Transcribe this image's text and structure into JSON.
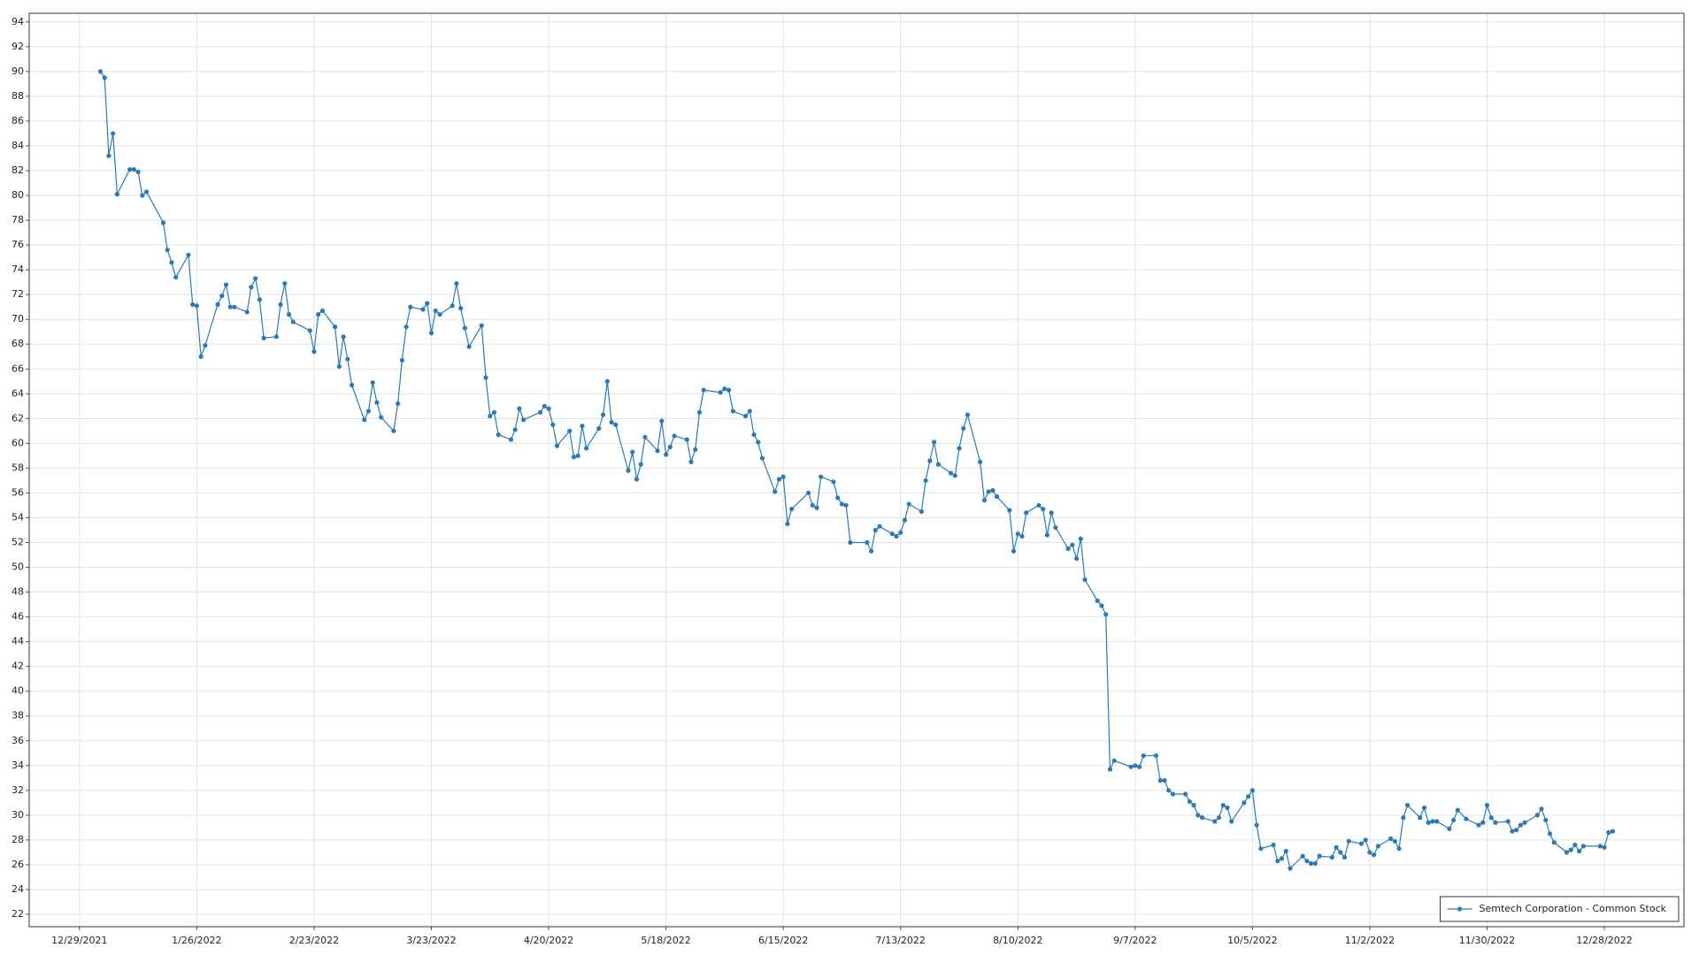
{
  "chart_data": {
    "type": "line",
    "x": [
      "1/3/2022",
      "1/4/2022",
      "1/5/2022",
      "1/6/2022",
      "1/7/2022",
      "1/10/2022",
      "1/11/2022",
      "1/12/2022",
      "1/13/2022",
      "1/14/2022",
      "1/18/2022",
      "1/19/2022",
      "1/20/2022",
      "1/21/2022",
      "1/24/2022",
      "1/25/2022",
      "1/26/2022",
      "1/27/2022",
      "1/28/2022",
      "1/31/2022",
      "2/1/2022",
      "2/2/2022",
      "2/3/2022",
      "2/4/2022",
      "2/7/2022",
      "2/8/2022",
      "2/9/2022",
      "2/10/2022",
      "2/11/2022",
      "2/14/2022",
      "2/15/2022",
      "2/16/2022",
      "2/17/2022",
      "2/18/2022",
      "2/22/2022",
      "2/23/2022",
      "2/24/2022",
      "2/25/2022",
      "2/28/2022",
      "3/1/2022",
      "3/2/2022",
      "3/3/2022",
      "3/4/2022",
      "3/7/2022",
      "3/8/2022",
      "3/9/2022",
      "3/10/2022",
      "3/11/2022",
      "3/14/2022",
      "3/15/2022",
      "3/16/2022",
      "3/17/2022",
      "3/18/2022",
      "3/21/2022",
      "3/22/2022",
      "3/23/2022",
      "3/24/2022",
      "3/25/2022",
      "3/28/2022",
      "3/29/2022",
      "3/30/2022",
      "3/31/2022",
      "4/1/2022",
      "4/4/2022",
      "4/5/2022",
      "4/6/2022",
      "4/7/2022",
      "4/8/2022",
      "4/11/2022",
      "4/12/2022",
      "4/13/2022",
      "4/14/2022",
      "4/18/2022",
      "4/19/2022",
      "4/20/2022",
      "4/21/2022",
      "4/22/2022",
      "4/25/2022",
      "4/26/2022",
      "4/27/2022",
      "4/28/2022",
      "4/29/2022",
      "5/2/2022",
      "5/3/2022",
      "5/4/2022",
      "5/5/2022",
      "5/6/2022",
      "5/9/2022",
      "5/10/2022",
      "5/11/2022",
      "5/12/2022",
      "5/13/2022",
      "5/16/2022",
      "5/17/2022",
      "5/18/2022",
      "5/19/2022",
      "5/20/2022",
      "5/23/2022",
      "5/24/2022",
      "5/25/2022",
      "5/26/2022",
      "5/27/2022",
      "5/31/2022",
      "6/1/2022",
      "6/2/2022",
      "6/3/2022",
      "6/6/2022",
      "6/7/2022",
      "6/8/2022",
      "6/9/2022",
      "6/10/2022",
      "6/13/2022",
      "6/14/2022",
      "6/15/2022",
      "6/16/2022",
      "6/17/2022",
      "6/21/2022",
      "6/22/2022",
      "6/23/2022",
      "6/24/2022",
      "6/27/2022",
      "6/28/2022",
      "6/29/2022",
      "6/30/2022",
      "7/1/2022",
      "7/5/2022",
      "7/6/2022",
      "7/7/2022",
      "7/8/2022",
      "7/11/2022",
      "7/12/2022",
      "7/13/2022",
      "7/14/2022",
      "7/15/2022",
      "7/18/2022",
      "7/19/2022",
      "7/20/2022",
      "7/21/2022",
      "7/22/2022",
      "7/25/2022",
      "7/26/2022",
      "7/27/2022",
      "7/28/2022",
      "7/29/2022",
      "8/1/2022",
      "8/2/2022",
      "8/3/2022",
      "8/4/2022",
      "8/5/2022",
      "8/8/2022",
      "8/9/2022",
      "8/10/2022",
      "8/11/2022",
      "8/12/2022",
      "8/15/2022",
      "8/16/2022",
      "8/17/2022",
      "8/18/2022",
      "8/19/2022",
      "8/22/2022",
      "8/23/2022",
      "8/24/2022",
      "8/25/2022",
      "8/26/2022",
      "8/29/2022",
      "8/30/2022",
      "8/31/2022",
      "9/1/2022",
      "9/2/2022",
      "9/6/2022",
      "9/7/2022",
      "9/8/2022",
      "9/9/2022",
      "9/12/2022",
      "9/13/2022",
      "9/14/2022",
      "9/15/2022",
      "9/16/2022",
      "9/19/2022",
      "9/20/2022",
      "9/21/2022",
      "9/22/2022",
      "9/23/2022",
      "9/26/2022",
      "9/27/2022",
      "9/28/2022",
      "9/29/2022",
      "9/30/2022",
      "10/3/2022",
      "10/4/2022",
      "10/5/2022",
      "10/6/2022",
      "10/7/2022",
      "10/10/2022",
      "10/11/2022",
      "10/12/2022",
      "10/13/2022",
      "10/14/2022",
      "10/17/2022",
      "10/18/2022",
      "10/19/2022",
      "10/20/2022",
      "10/21/2022",
      "10/24/2022",
      "10/25/2022",
      "10/26/2022",
      "10/27/2022",
      "10/28/2022",
      "10/31/2022",
      "11/1/2022",
      "11/2/2022",
      "11/3/2022",
      "11/4/2022",
      "11/7/2022",
      "11/8/2022",
      "11/9/2022",
      "11/10/2022",
      "11/11/2022",
      "11/14/2022",
      "11/15/2022",
      "11/16/2022",
      "11/17/2022",
      "11/18/2022",
      "11/21/2022",
      "11/22/2022",
      "11/23/2022",
      "11/25/2022",
      "11/28/2022",
      "11/29/2022",
      "11/30/2022",
      "12/1/2022",
      "12/2/2022",
      "12/5/2022",
      "12/6/2022",
      "12/7/2022",
      "12/8/2022",
      "12/9/2022",
      "12/12/2022",
      "12/13/2022",
      "12/14/2022",
      "12/15/2022",
      "12/16/2022",
      "12/19/2022",
      "12/20/2022",
      "12/21/2022",
      "12/22/2022",
      "12/23/2022",
      "12/27/2022",
      "12/28/2022",
      "12/29/2022",
      "12/30/2022"
    ],
    "series": [
      {
        "name": "Semtech Corporation - Common Stock",
        "color": "#2a7ab8",
        "values": [
          90.0,
          89.5,
          83.2,
          85.0,
          80.1,
          82.1,
          82.1,
          81.9,
          80.0,
          80.3,
          77.8,
          75.6,
          74.6,
          73.4,
          75.2,
          71.2,
          71.1,
          67.0,
          67.9,
          71.2,
          71.9,
          72.8,
          71.0,
          71.0,
          70.6,
          72.6,
          73.3,
          71.6,
          68.5,
          68.6,
          71.2,
          72.9,
          70.4,
          69.8,
          69.1,
          67.4,
          70.4,
          70.7,
          69.4,
          66.2,
          68.6,
          66.8,
          64.7,
          61.9,
          62.6,
          64.9,
          63.3,
          62.1,
          61.0,
          63.2,
          66.7,
          69.4,
          71.0,
          70.8,
          71.3,
          68.9,
          70.7,
          70.4,
          71.1,
          72.9,
          70.9,
          69.3,
          67.8,
          69.5,
          65.3,
          62.2,
          62.5,
          60.7,
          60.3,
          61.1,
          62.8,
          61.9,
          62.5,
          63.0,
          62.8,
          61.5,
          59.8,
          61.0,
          58.9,
          59.0,
          61.4,
          59.6,
          61.2,
          62.3,
          65.0,
          61.7,
          61.5,
          57.8,
          59.3,
          57.1,
          58.3,
          60.5,
          59.4,
          61.8,
          59.1,
          59.7,
          60.6,
          60.3,
          58.5,
          59.5,
          62.5,
          64.3,
          64.1,
          64.4,
          64.3,
          62.6,
          62.2,
          62.6,
          60.7,
          60.1,
          58.8,
          56.1,
          57.1,
          57.3,
          53.5,
          54.7,
          56.0,
          55.0,
          54.8,
          57.3,
          56.9,
          55.6,
          55.1,
          55.0,
          52.0,
          52.0,
          51.3,
          53.0,
          53.3,
          52.7,
          52.5,
          52.8,
          53.8,
          55.1,
          54.5,
          57.0,
          58.6,
          60.1,
          58.3,
          57.6,
          57.4,
          59.6,
          61.2,
          62.3,
          58.5,
          55.4,
          56.1,
          56.2,
          55.7,
          54.6,
          51.3,
          52.7,
          52.5,
          54.4,
          55.0,
          54.7,
          52.6,
          54.4,
          53.2,
          51.5,
          51.8,
          50.7,
          52.3,
          49.0,
          47.3,
          46.9,
          46.2,
          33.7,
          34.4,
          33.9,
          34.0,
          33.9,
          34.8,
          34.8,
          32.8,
          32.8,
          32.0,
          31.7,
          31.7,
          31.1,
          30.8,
          30.0,
          29.8,
          29.5,
          29.8,
          30.8,
          30.6,
          29.5,
          31.0,
          31.5,
          32.0,
          29.2,
          27.3,
          27.6,
          26.3,
          26.5,
          27.1,
          25.7,
          26.7,
          26.3,
          26.1,
          26.1,
          26.7,
          26.6,
          27.4,
          27.0,
          26.6,
          27.9,
          27.7,
          28.0,
          27.0,
          26.8,
          27.5,
          28.1,
          27.9,
          27.3,
          29.8,
          30.8,
          29.8,
          30.6,
          29.4,
          29.5,
          29.5,
          28.9,
          29.6,
          30.4,
          29.7,
          29.2,
          29.4,
          30.8,
          29.8,
          29.4,
          29.5,
          28.7,
          28.8,
          29.2,
          29.4,
          30.0,
          30.5,
          29.6,
          28.5,
          27.8,
          27.0,
          27.2,
          27.6,
          27.1,
          27.5,
          27.5,
          27.4,
          28.6,
          28.7
        ]
      }
    ],
    "xlim": [
      "12/17/2021",
      "1/16/2023"
    ],
    "xticks": [
      "12/29/2021",
      "1/26/2022",
      "2/23/2022",
      "3/23/2022",
      "4/20/2022",
      "5/18/2022",
      "6/15/2022",
      "7/13/2022",
      "8/10/2022",
      "9/7/2022",
      "10/5/2022",
      "11/2/2022",
      "11/30/2022",
      "12/28/2022"
    ],
    "ylim": [
      21,
      94.7
    ],
    "yticks": [
      22,
      24,
      26,
      28,
      30,
      32,
      34,
      36,
      38,
      40,
      42,
      44,
      46,
      48,
      50,
      52,
      54,
      56,
      58,
      60,
      62,
      64,
      66,
      68,
      70,
      72,
      74,
      76,
      78,
      80,
      82,
      84,
      86,
      88,
      90,
      92,
      94
    ],
    "grid": true,
    "markers": true,
    "legend": "lower right"
  }
}
